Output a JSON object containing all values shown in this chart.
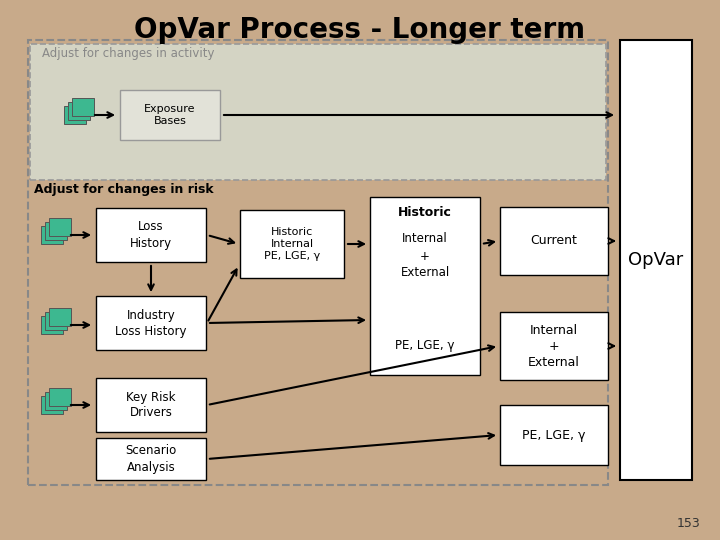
{
  "title": "OpVar Process - Longer term",
  "title_fontsize": 20,
  "background_color": "#c8aa8a",
  "page_number": "153",
  "icon_color": "#3db890",
  "icon_shadow": "#2a9070",
  "arrow_color": "#000000",
  "activity_fill": "#d8d8cc",
  "activity_label": "Adjust for changes in activity",
  "risk_label": "Adjust for changes in risk",
  "opvar_text": "OpVar",
  "exposure_text": "Exposure\nBases",
  "loss_history_text": "Loss\nHistory",
  "industry_text": "Industry\nLoss History",
  "hist_internal_text": "Historic\nInternal\nPE, LGE, γ",
  "hist_combined_text_1": "Historic",
  "hist_combined_text_2": "Internal\n+\nExternal",
  "hist_combined_text_3": "PE, LGE, γ",
  "current_text": "Current",
  "key_risk_text": "Key Risk\nDrivers",
  "scenario_text": "Scenario\nAnalysis",
  "int_ext_text": "Internal\n+\nExternal",
  "pe_lge_text": "PE, LGE, γ"
}
